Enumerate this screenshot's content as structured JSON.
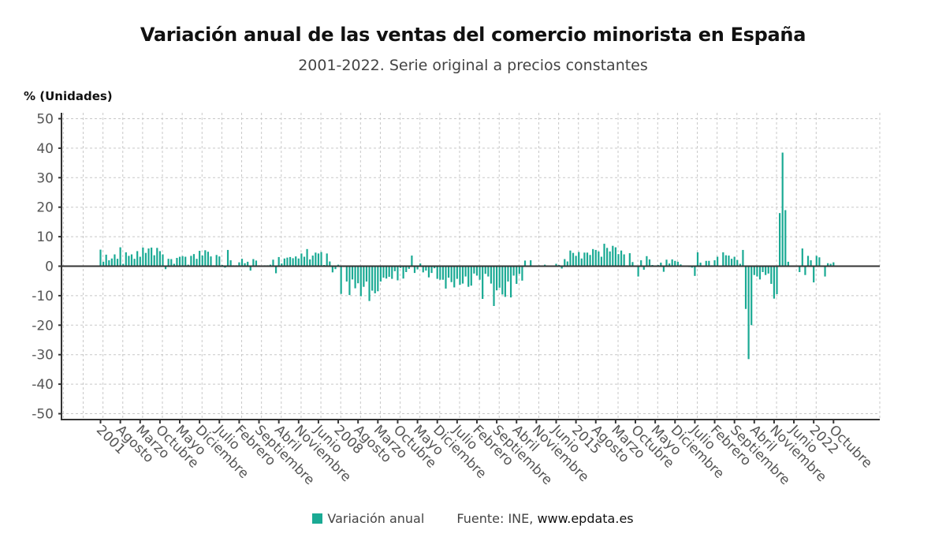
{
  "chart_data": {
    "type": "bar",
    "title": "Variación anual de las ventas del comercio minorista en España",
    "subtitle": "2001-2022. Serie original a precios constantes",
    "ylabel": "% (Unidades)",
    "xlabel": "",
    "ylim": [
      -52,
      52
    ],
    "yticks": [
      50,
      40,
      30,
      20,
      10,
      0,
      -10,
      -20,
      -30,
      -40,
      -50
    ],
    "grid": true,
    "legend_position": "bottom",
    "bar_color": "#1aaa94",
    "start": "2001-01",
    "x_tick_every_months": 7,
    "x_tick_labels": [
      "2001",
      "Agosto",
      "Marzo",
      "Octubre",
      "Mayo",
      "Diciembre",
      "Julio",
      "Febrero",
      "Septiembre",
      "Abril",
      "Noviembre",
      "Junio",
      "2008",
      "Agosto",
      "Marzo",
      "Octubre",
      "Mayo",
      "Diciembre",
      "Julio",
      "Febrero",
      "Septiembre",
      "Abril",
      "Noviembre",
      "Junio",
      "2015",
      "Agosto",
      "Marzo",
      "Octubre",
      "Mayo",
      "Diciembre",
      "Julio",
      "Febrero",
      "Septiembre",
      "Abril",
      "Noviembre",
      "Junio",
      "2022",
      "Octubre"
    ],
    "series": [
      {
        "name": "Variación anual",
        "values": [
          5.6,
          1.5,
          3.9,
          2.0,
          2.6,
          4.0,
          2.5,
          6.4,
          0.8,
          4.7,
          3.5,
          4.0,
          2.5,
          5.1,
          3.2,
          6.3,
          4.5,
          6.0,
          6.3,
          3.7,
          6.2,
          5.1,
          4.0,
          -1.0,
          2.5,
          2.4,
          0.8,
          2.8,
          3.2,
          3.4,
          3.2,
          0.5,
          3.5,
          4.1,
          2.5,
          5.2,
          3.6,
          5.4,
          4.9,
          3.3,
          0.3,
          3.8,
          3.3,
          0.4,
          -0.5,
          5.5,
          2.0,
          0.3,
          0.3,
          1.3,
          2.5,
          1.0,
          1.5,
          -1.5,
          2.4,
          1.9,
          0.3,
          0.2,
          0.3,
          0.3,
          0.5,
          2.2,
          -2.4,
          3.1,
          0.9,
          2.6,
          2.9,
          3.1,
          2.7,
          3.3,
          2.6,
          4.3,
          3.2,
          5.8,
          2.3,
          3.6,
          4.6,
          4.3,
          4.8,
          0.4,
          4.3,
          1.6,
          -2.1,
          -1.0,
          0.5,
          -9.4,
          -0.3,
          -5.2,
          -9.8,
          -4.5,
          -7.5,
          -5.8,
          -10.2,
          -7.0,
          -5.2,
          -11.8,
          -8.3,
          -9.2,
          -8.5,
          -5.2,
          -3.9,
          -4.2,
          -3.6,
          -4.3,
          -1.7,
          -4.8,
          -0.6,
          -4.2,
          -2.0,
          -0.9,
          3.6,
          -2.3,
          -1.1,
          0.9,
          -2.1,
          -1.5,
          -3.8,
          -2.3,
          -0.7,
          -4.3,
          -4.6,
          -4.6,
          -7.6,
          -3.9,
          -5.4,
          -7.2,
          -4.3,
          -6.3,
          -5.9,
          -3.5,
          -7.0,
          -6.6,
          -2.5,
          -3.2,
          -4.6,
          -11.1,
          -2.6,
          -3.5,
          -5.9,
          -13.5,
          -8.2,
          -7.3,
          -9.6,
          -10.4,
          -5.2,
          -10.6,
          -3.2,
          -6.0,
          -2.6,
          -4.9,
          1.9,
          -0.2,
          2.0,
          0.1,
          0.0,
          0.3,
          0.2,
          0.5,
          0.2,
          0.1,
          0.2,
          0.8,
          0.4,
          -0.8,
          2.4,
          1.6,
          5.3,
          4.5,
          3.5,
          4.8,
          2.6,
          4.6,
          4.6,
          3.8,
          5.8,
          5.5,
          5.0,
          3.2,
          7.6,
          6.2,
          5.0,
          6.9,
          6.4,
          4.1,
          5.3,
          4.0,
          0.3,
          4.4,
          1.4,
          -0.2,
          -3.5,
          2.0,
          -1.2,
          3.4,
          2.3,
          0.4,
          0.2,
          0.4,
          1.2,
          -1.9,
          2.2,
          0.9,
          2.3,
          1.8,
          1.5,
          0.6,
          0.2,
          0.1,
          -0.3,
          -0.5,
          -3.3,
          4.7,
          1.2,
          0.0,
          1.8,
          1.8,
          0.3,
          2.0,
          3.2,
          0.2,
          4.7,
          3.7,
          3.6,
          2.5,
          3.2,
          2.1,
          0.8,
          5.5,
          -14.5,
          -31.5,
          -20.0,
          -3.0,
          -3.5,
          -4.5,
          -2.0,
          -3.0,
          -2.5,
          -6.0,
          -11.0,
          -9.5,
          18.0,
          38.5,
          19.0,
          1.5,
          0.0,
          0.0,
          0.2,
          -2.0,
          6.0,
          -3.0,
          3.5,
          2.0,
          -5.5,
          3.5,
          3.0,
          0.0,
          -3.5,
          1.0,
          0.8,
          1.3
        ]
      }
    ]
  },
  "legend": {
    "label": "Variación anual",
    "source_prefix": "Fuente: INE,",
    "source_site": "www.epdata.es"
  }
}
